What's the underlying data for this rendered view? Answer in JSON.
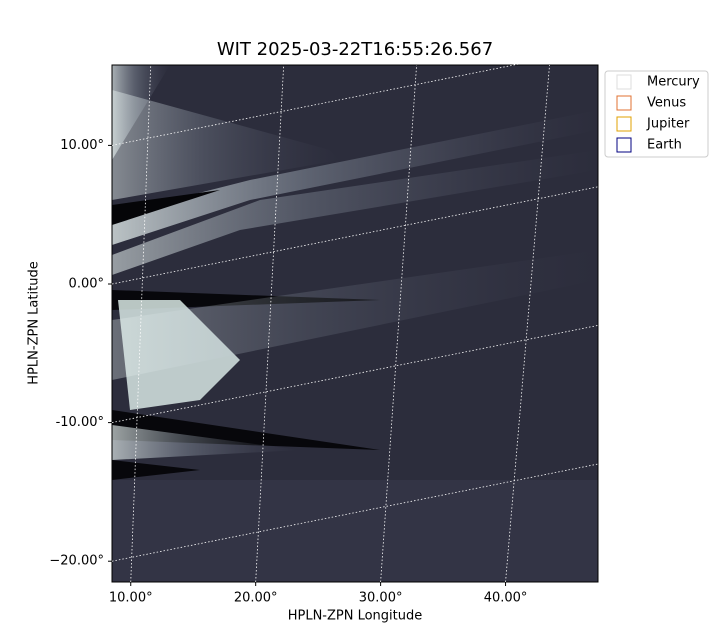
{
  "chart_data": {
    "type": "image",
    "title": "WIT 2025-03-22T16:55:26.567",
    "x_label": "HPLN-ZPN Longitude",
    "y_label": "HPLN-ZPN Latitude",
    "xlim": [
      8.5,
      47.4
    ],
    "ylim": [
      -21.5,
      15.8
    ],
    "xticks": [
      {
        "value": 10,
        "label": "10.00°"
      },
      {
        "value": 20,
        "label": "20.00°"
      },
      {
        "value": 30,
        "label": "30.00°"
      },
      {
        "value": 40,
        "label": "40.00°"
      }
    ],
    "yticks": [
      {
        "value": 10,
        "label": "10.00°"
      },
      {
        "value": 0,
        "label": "0.00°"
      },
      {
        "value": -10,
        "label": "-10.00°"
      },
      {
        "value": -20,
        "label": "−20.00°"
      }
    ],
    "grid": true,
    "legend_position": "upper right outside",
    "series": [
      {
        "name": "Mercury",
        "color": "#dddddd"
      },
      {
        "name": "Venus",
        "color": "#e07030"
      },
      {
        "name": "Jupiter",
        "color": "#e0a000"
      },
      {
        "name": "Earth",
        "color": "#000080"
      }
    ]
  }
}
